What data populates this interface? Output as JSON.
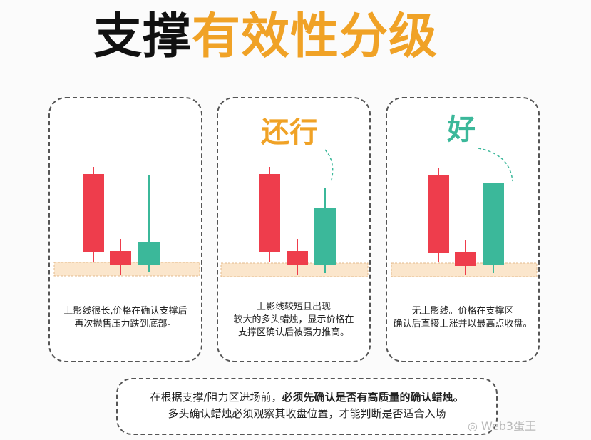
{
  "title": {
    "part1": "支撑",
    "part2": "有效性分级"
  },
  "cards": [
    {
      "label": "",
      "description_line1": "上影线很长,价格在确认支撑后",
      "description_line2": "再次抛售压力跌到底部。",
      "description_line3": ""
    },
    {
      "label": "还行",
      "description_line1": "上影线较短且出现",
      "description_line2": "较大的多头蜡烛，显示价格在",
      "description_line3": "支撑区确认后被强力推高。"
    },
    {
      "label": "好",
      "description_line1": "无上影线。价格在支撑区",
      "description_line2": "确认后直接上涨并以最高点收盘。",
      "description_line3": ""
    }
  ],
  "note": {
    "line1_prefix": "在根据支撑/阻力区进场前，",
    "line1_bold": "必须先确认是否有高质量的确认蜡烛。",
    "line2": "多头确认蜡烛必须观察其收盘位置，才能判断是否适合入场"
  },
  "watermark": "Web3蛋王",
  "colors": {
    "bear": "#ee3d4c",
    "bull": "#3bb89a",
    "support_zone": "#fbe6cc",
    "title_accent": "#f0a226"
  }
}
